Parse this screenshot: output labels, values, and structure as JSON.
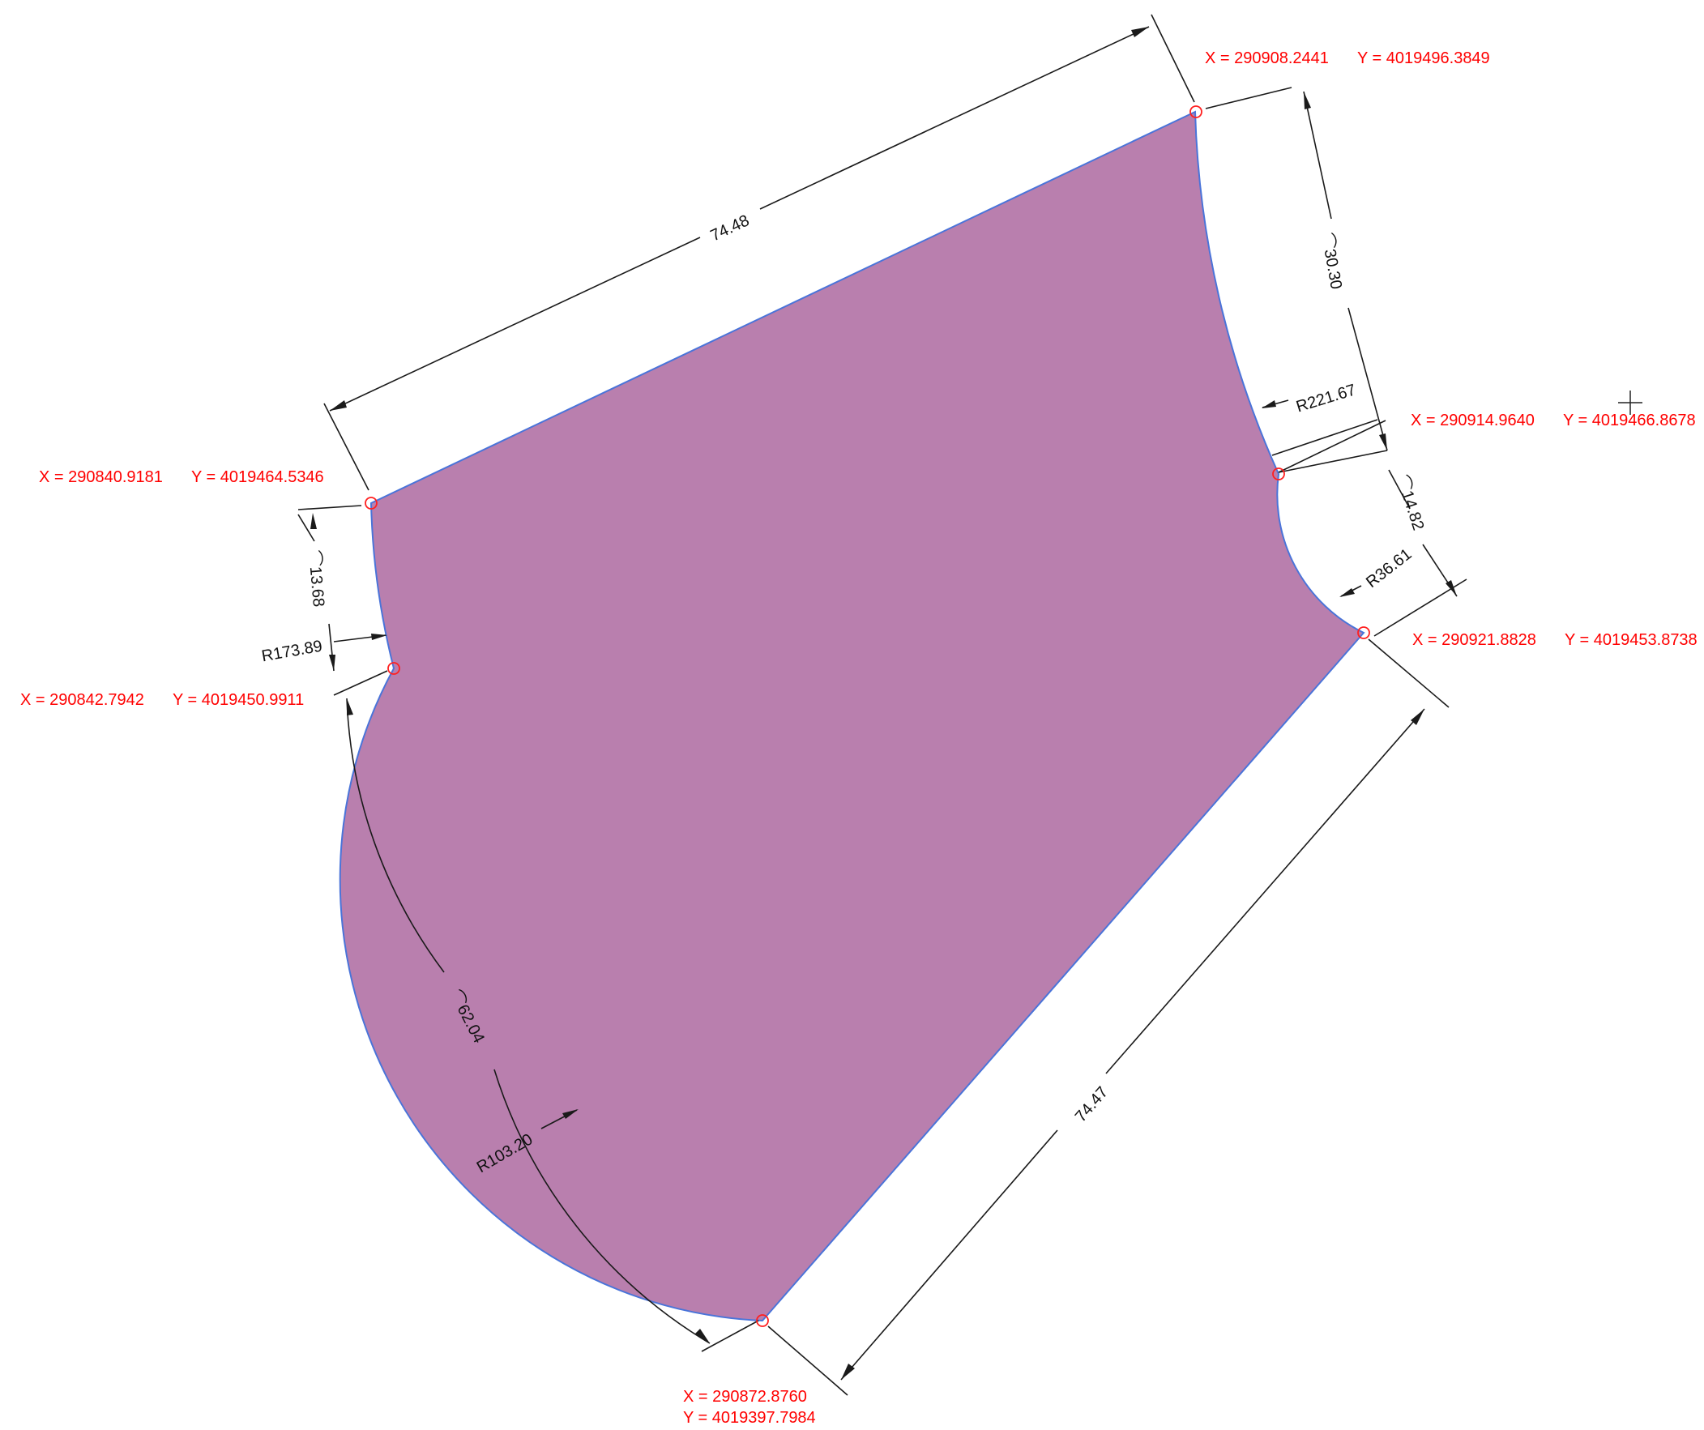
{
  "vertices": [
    {
      "id": "v1",
      "x_label": "X = 290908.2441",
      "y_label": "Y = 4019496.3849"
    },
    {
      "id": "v2",
      "x_label": "X = 290914.9640",
      "y_label": "Y = 4019466.8678"
    },
    {
      "id": "v3",
      "x_label": "X = 290921.8828",
      "y_label": "Y = 4019453.8738"
    },
    {
      "id": "v4",
      "x_label": "X = 290872.8760",
      "y_label": "Y = 4019397.7984"
    },
    {
      "id": "v5",
      "x_label": "X = 290842.7942",
      "y_label": "Y = 4019450.9911"
    },
    {
      "id": "v6",
      "x_label": "X = 290840.9181",
      "y_label": "Y = 4019464.5346"
    }
  ],
  "dimensions": {
    "top_length": "74.48",
    "right_bottom_length": "74.47",
    "arc_right_upper": "30.30",
    "arc_right_lower": "14.82",
    "arc_left_lower": "62.04",
    "arc_left_upper": "13.68",
    "arc_symbol": "⌒"
  },
  "radii": {
    "r_right_upper": "R221.67",
    "r_right_lower": "R36.61",
    "r_left_lower": "R103.20",
    "r_left_upper": "R173.89"
  },
  "colors": {
    "parcel_fill": "#b97fae",
    "parcel_outline": "#4a74d9",
    "coordinate_text": "#ff0000",
    "dimension_text": "#111111"
  }
}
